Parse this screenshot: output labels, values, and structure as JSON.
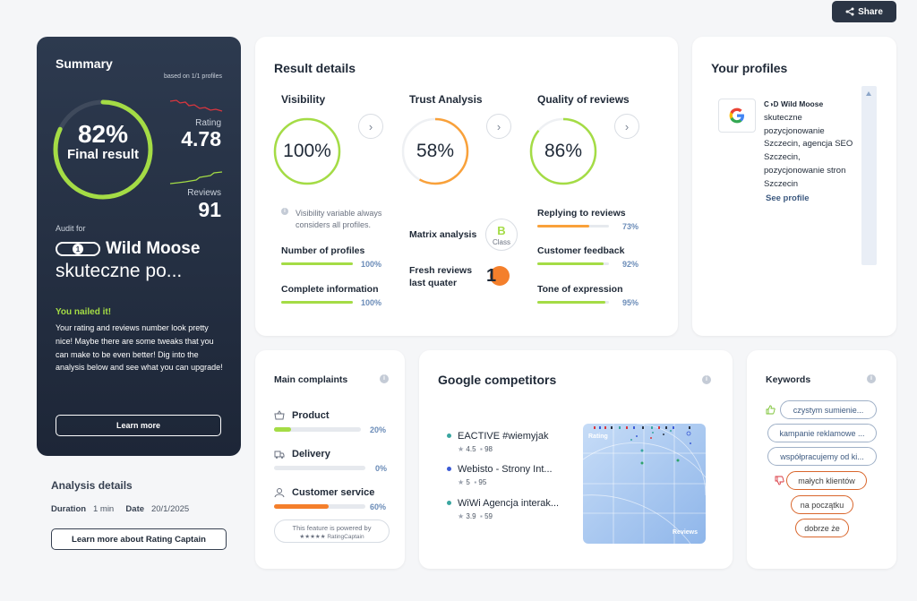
{
  "share_label": "Share",
  "summary": {
    "title": "Summary",
    "based_on": "based on 1/1 profiles",
    "score_pct": "82%",
    "score_fraction": 0.82,
    "score_label": "Final result",
    "rating_label": "Rating",
    "rating_value": "4.78",
    "reviews_label": "Reviews",
    "reviews_value": "91",
    "audit_label": "Audit for",
    "audit_name_line1": "Wild Moose",
    "audit_name_line2": "skuteczne po...",
    "nailed": "You nailed it!",
    "description": "Your rating and reviews number look pretty nice! Maybe there are some tweaks that you can make to be even better! Dig into the analysis below and see what you can upgrade!",
    "learn_more": "Learn more"
  },
  "analysis": {
    "title": "Analysis details",
    "duration_label": "Duration",
    "duration_value": "1 min",
    "date_label": "Date",
    "date_value": "20/1/2025",
    "button": "Learn more about Rating Captain"
  },
  "result": {
    "title": "Result details",
    "visibility": {
      "title": "Visibility",
      "pct": "100%",
      "fraction": 1.0
    },
    "trust": {
      "title": "Trust Analysis",
      "pct": "58%",
      "fraction": 0.58
    },
    "quality": {
      "title": "Quality of reviews",
      "pct": "86%",
      "fraction": 0.86
    },
    "visibility_note": "Visibility variable always considers all profiles.",
    "metrics_left": [
      {
        "label": "Number of profiles",
        "value": "100%",
        "fraction": 1.0
      },
      {
        "label": "Complete information",
        "value": "100%",
        "fraction": 1.0
      }
    ],
    "matrix_label": "Matrix analysis",
    "matrix_badge_letter": "B",
    "matrix_badge_sub": "Class",
    "fresh_label": "Fresh reviews last quater",
    "fresh_value": "1",
    "metrics_right": [
      {
        "label": "Replying to reviews",
        "value": "73%",
        "fraction": 0.73
      },
      {
        "label": "Customer feedback",
        "value": "92%",
        "fraction": 0.92
      },
      {
        "label": "Tone of expression",
        "value": "95%",
        "fraction": 0.95
      }
    ]
  },
  "profiles": {
    "title": "Your profiles",
    "name_brand": "Wild Moose",
    "name_rest": "skuteczne pozycjonowanie Szczecin, agencja SEO Szczecin, pozycjonowanie stron Szczecin",
    "see_profile": "See profile"
  },
  "complaints": {
    "title": "Main complaints",
    "items": [
      {
        "label": "Product",
        "value": "20%",
        "fraction": 0.2,
        "icon": "basket-icon"
      },
      {
        "label": "Delivery",
        "value": "0%",
        "fraction": 0.0,
        "icon": "truck-icon"
      },
      {
        "label": "Customer service",
        "value": "60%",
        "fraction": 0.6,
        "icon": "person-icon"
      }
    ],
    "powered_line1": "This feature is powered by",
    "powered_line2": "★★★★★ RatingCaptain"
  },
  "competitors": {
    "title": "Google competitors",
    "items": [
      {
        "name": "EACTIVE #wiemyjak",
        "rating": "4.5",
        "reviews": "98",
        "color": "#3aa6a0"
      },
      {
        "name": "Webisto - Strony Int...",
        "rating": "5",
        "reviews": "95",
        "color": "#3c5bd6"
      },
      {
        "name": "WiWi Agencja interak...",
        "rating": "3.9",
        "reviews": "59",
        "color": "#3aa6a0"
      }
    ],
    "chart_rating_label": "Rating",
    "chart_reviews_label": "Reviews"
  },
  "keywords": {
    "title": "Keywords",
    "positive": [
      "czystym sumienie...",
      "kampanie reklamowe ...",
      "współpracujemy od ki..."
    ],
    "negative": [
      "małych klientów",
      "na początku",
      "dobrze że"
    ]
  },
  "colors": {
    "green": "#a4dc45",
    "orange": "#f47f2b",
    "navy": "#2b3545"
  }
}
